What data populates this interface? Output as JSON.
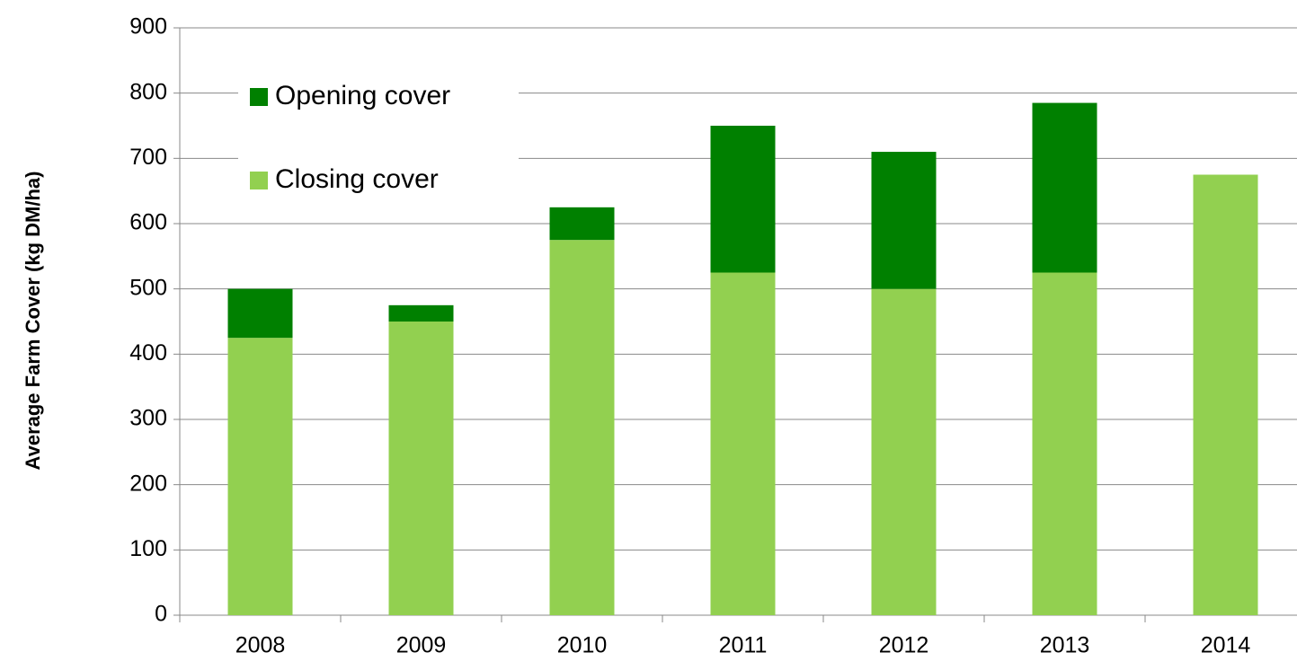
{
  "chart_data": {
    "type": "stacked_bar",
    "y_label": "Average Farm Cover (kg DM/ha)",
    "categories": [
      "2008",
      "2009",
      "2010",
      "2011",
      "2012",
      "2013",
      "2014"
    ],
    "series": [
      {
        "name": "Closing cover",
        "color": "#92d050",
        "values": [
          425,
          450,
          575,
          525,
          500,
          525,
          675
        ]
      },
      {
        "name": "Opening cover",
        "color": "#008000",
        "values": [
          75,
          25,
          50,
          225,
          210,
          260,
          null
        ]
      }
    ],
    "ylim": [
      0,
      900
    ],
    "yticks": [
      0,
      100,
      200,
      300,
      400,
      500,
      600,
      700,
      800,
      900
    ],
    "grid": true,
    "legend": "top-left"
  }
}
